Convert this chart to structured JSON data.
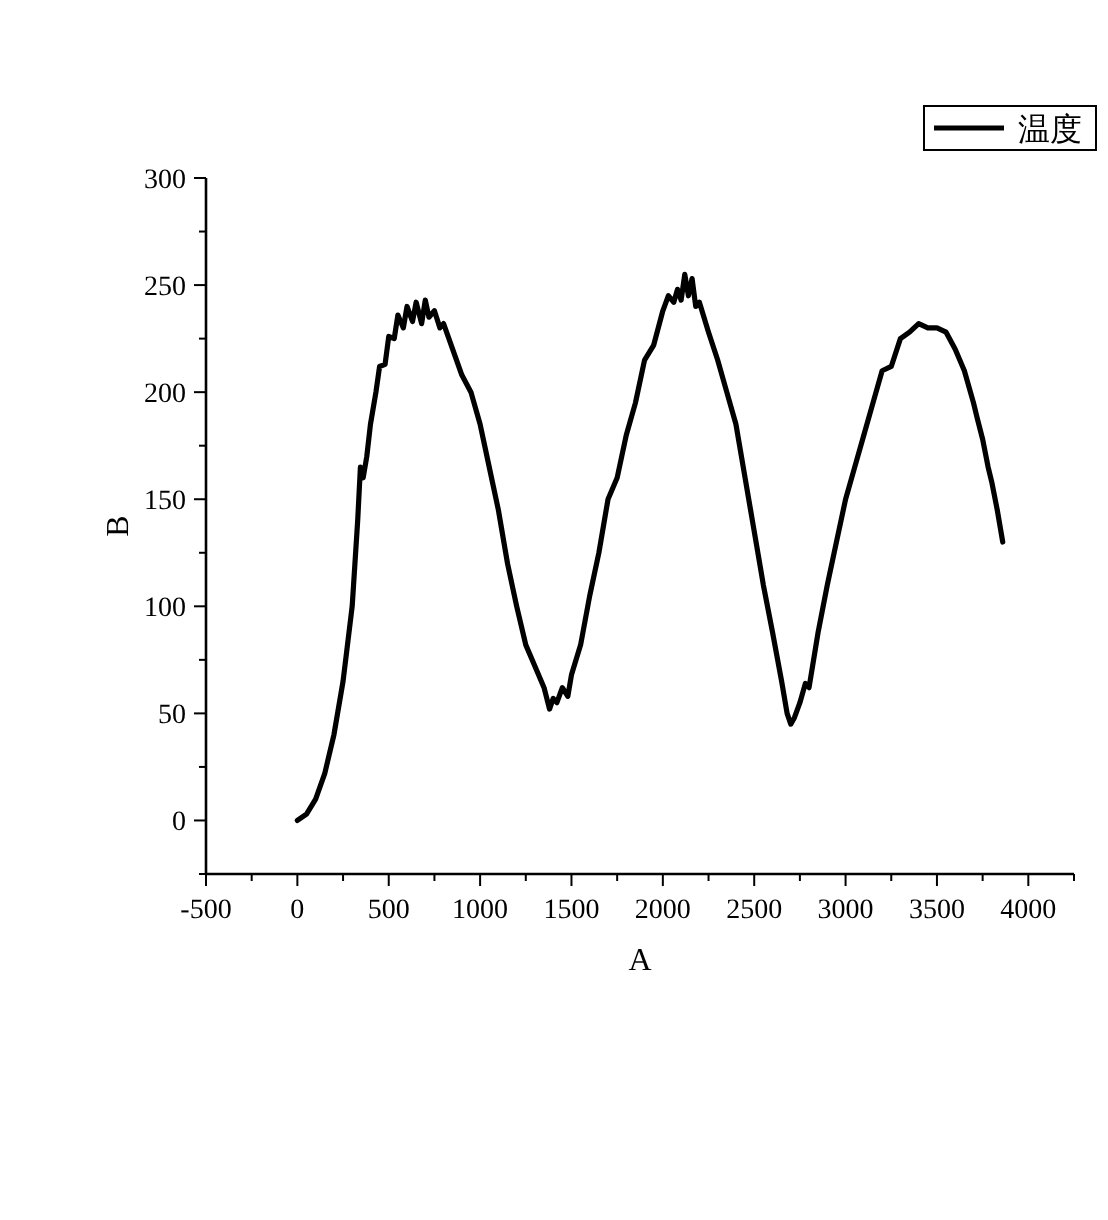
{
  "chart_data": {
    "type": "line",
    "xlabel": "A",
    "ylabel": "B",
    "legend": "top right",
    "xlim": [
      -500,
      4250
    ],
    "ylim": [
      -25,
      300
    ],
    "xticks": [
      -500,
      0,
      500,
      1000,
      1500,
      2000,
      2500,
      3000,
      3500,
      4000
    ],
    "yticks": [
      0,
      50,
      100,
      150,
      200,
      250,
      300
    ],
    "series": [
      {
        "name": "温度",
        "color": "#000000",
        "x": [
          0,
          50,
          100,
          150,
          200,
          250,
          300,
          330,
          345,
          360,
          380,
          400,
          430,
          450,
          480,
          500,
          530,
          550,
          580,
          600,
          630,
          650,
          680,
          700,
          720,
          750,
          780,
          800,
          850,
          900,
          950,
          1000,
          1050,
          1100,
          1150,
          1200,
          1250,
          1300,
          1350,
          1380,
          1400,
          1420,
          1450,
          1480,
          1500,
          1550,
          1600,
          1650,
          1700,
          1750,
          1800,
          1850,
          1900,
          1950,
          2000,
          2030,
          2060,
          2080,
          2100,
          2120,
          2140,
          2160,
          2180,
          2200,
          2250,
          2300,
          2350,
          2400,
          2450,
          2500,
          2550,
          2600,
          2650,
          2680,
          2700,
          2720,
          2750,
          2780,
          2800,
          2850,
          2900,
          2950,
          3000,
          3050,
          3100,
          3150,
          3200,
          3250,
          3300,
          3350,
          3400,
          3450,
          3500,
          3550,
          3600,
          3650,
          3700,
          3720,
          3750,
          3780,
          3800,
          3830,
          3860
        ],
        "values": [
          0,
          3,
          10,
          22,
          40,
          65,
          100,
          140,
          165,
          160,
          170,
          185,
          200,
          212,
          213,
          226,
          225,
          236,
          230,
          240,
          233,
          242,
          232,
          243,
          235,
          238,
          230,
          232,
          220,
          208,
          200,
          185,
          165,
          145,
          120,
          100,
          82,
          72,
          62,
          52,
          57,
          55,
          62,
          58,
          68,
          82,
          105,
          125,
          150,
          160,
          180,
          195,
          215,
          222,
          238,
          245,
          242,
          248,
          243,
          255,
          245,
          253,
          240,
          242,
          228,
          215,
          200,
          185,
          160,
          135,
          110,
          88,
          65,
          50,
          45,
          48,
          55,
          64,
          62,
          88,
          110,
          130,
          150,
          165,
          180,
          195,
          210,
          212,
          225,
          228,
          232,
          230,
          230,
          228,
          220,
          210,
          195,
          188,
          178,
          165,
          158,
          145,
          130
        ]
      }
    ]
  }
}
